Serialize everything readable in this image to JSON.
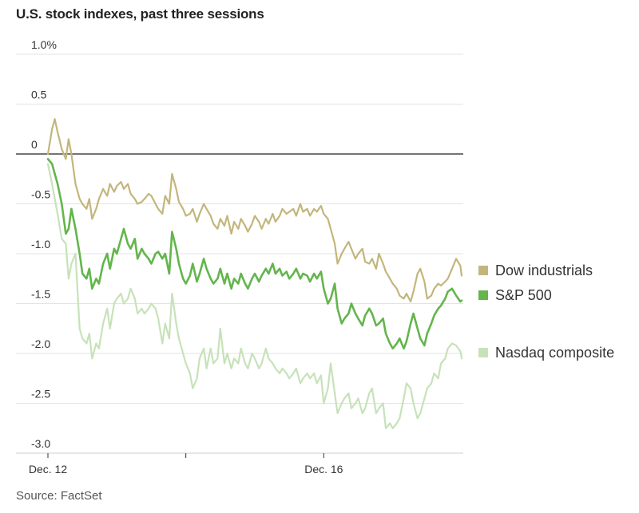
{
  "header": {
    "title": "U.S. stock indexes, past three sessions"
  },
  "footer": {
    "source": "Source: FactSet"
  },
  "chart_data": {
    "type": "line",
    "title": "U.S. stock indexes, past three sessions",
    "xlabel": "",
    "ylabel": "",
    "ylim": [
      -3.0,
      1.0
    ],
    "y_ticks": [
      1.0,
      0.5,
      0,
      -0.5,
      -1.0,
      -1.5,
      -2.0,
      -2.5,
      -3.0
    ],
    "y_tick_labels": [
      "1.0%",
      "0.5",
      "0",
      "-0.5",
      "-1.0",
      "-1.5",
      "-2.0",
      "-2.5",
      "-3.0"
    ],
    "x_tick_labels": [
      "Dec. 12",
      "",
      "Dec. 16"
    ],
    "x_range": [
      0,
      30
    ],
    "x_ticks": [
      0,
      10,
      20
    ],
    "grid": true,
    "legend_position": "right",
    "series": [
      {
        "name": "Dow industrials",
        "color": "#c3b67c",
        "x": [
          0,
          0.3,
          0.5,
          0.7,
          1.0,
          1.3,
          1.5,
          1.7,
          2.0,
          2.3,
          2.5,
          2.8,
          3.0,
          3.2,
          3.5,
          3.7,
          4.0,
          4.3,
          4.5,
          4.8,
          5.0,
          5.3,
          5.5,
          5.8,
          6.0,
          6.3,
          6.5,
          6.8,
          7.0,
          7.3,
          7.5,
          7.8,
          8.0,
          8.3,
          8.5,
          8.8,
          9.0,
          9.3,
          9.5,
          9.8,
          10.0,
          10.3,
          10.5,
          10.8,
          11.0,
          11.3,
          11.5,
          11.8,
          12.0,
          12.3,
          12.5,
          12.8,
          13.0,
          13.3,
          13.5,
          13.8,
          14.0,
          14.3,
          14.5,
          14.8,
          15.0,
          15.3,
          15.5,
          15.8,
          16.0,
          16.3,
          16.5,
          16.8,
          17.0,
          17.3,
          17.5,
          17.8,
          18.0,
          18.3,
          18.5,
          18.8,
          19.0,
          19.3,
          19.5,
          19.8,
          20.0,
          20.3,
          20.5,
          20.8,
          21.0,
          21.3,
          21.5,
          21.8,
          22.0,
          22.3,
          22.5,
          22.8,
          23.0,
          23.3,
          23.5,
          23.8,
          24.0,
          24.3,
          24.5,
          24.8,
          25.0,
          25.3,
          25.5,
          25.8,
          26.0,
          26.3,
          26.5,
          26.8,
          27.0,
          27.3,
          27.5,
          27.8,
          28.0,
          28.3,
          28.5,
          28.8,
          29.0,
          29.3,
          29.6,
          29.9,
          30.0
        ],
        "values": [
          0.0,
          0.25,
          0.35,
          0.22,
          0.05,
          -0.05,
          0.15,
          0.0,
          -0.3,
          -0.45,
          -0.5,
          -0.55,
          -0.45,
          -0.65,
          -0.55,
          -0.45,
          -0.35,
          -0.42,
          -0.3,
          -0.38,
          -0.32,
          -0.28,
          -0.35,
          -0.3,
          -0.4,
          -0.45,
          -0.5,
          -0.48,
          -0.45,
          -0.4,
          -0.42,
          -0.5,
          -0.55,
          -0.6,
          -0.42,
          -0.5,
          -0.2,
          -0.35,
          -0.48,
          -0.55,
          -0.62,
          -0.6,
          -0.55,
          -0.68,
          -0.6,
          -0.5,
          -0.55,
          -0.62,
          -0.7,
          -0.75,
          -0.65,
          -0.72,
          -0.62,
          -0.8,
          -0.68,
          -0.75,
          -0.65,
          -0.72,
          -0.78,
          -0.7,
          -0.62,
          -0.68,
          -0.75,
          -0.65,
          -0.7,
          -0.6,
          -0.68,
          -0.62,
          -0.55,
          -0.6,
          -0.58,
          -0.55,
          -0.62,
          -0.5,
          -0.58,
          -0.55,
          -0.62,
          -0.55,
          -0.58,
          -0.52,
          -0.6,
          -0.65,
          -0.75,
          -0.9,
          -1.1,
          -1.0,
          -0.95,
          -0.88,
          -0.95,
          -1.05,
          -1.0,
          -0.95,
          -1.08,
          -1.1,
          -1.05,
          -1.15,
          -1.0,
          -1.1,
          -1.18,
          -1.25,
          -1.3,
          -1.35,
          -1.42,
          -1.45,
          -1.4,
          -1.48,
          -1.38,
          -1.2,
          -1.15,
          -1.28,
          -1.45,
          -1.42,
          -1.35,
          -1.3,
          -1.32,
          -1.28,
          -1.25,
          -1.15,
          -1.05,
          -1.12,
          -1.22
        ],
        "line_width": 2.2
      },
      {
        "name": "S&P 500",
        "color": "#63b54c",
        "x": [
          0,
          0.3,
          0.5,
          0.7,
          1.0,
          1.3,
          1.5,
          1.7,
          2.0,
          2.3,
          2.5,
          2.8,
          3.0,
          3.2,
          3.5,
          3.7,
          4.0,
          4.3,
          4.5,
          4.8,
          5.0,
          5.3,
          5.5,
          5.8,
          6.0,
          6.3,
          6.5,
          6.8,
          7.0,
          7.3,
          7.5,
          7.8,
          8.0,
          8.3,
          8.5,
          8.8,
          9.0,
          9.3,
          9.5,
          9.8,
          10.0,
          10.3,
          10.5,
          10.8,
          11.0,
          11.3,
          11.5,
          11.8,
          12.0,
          12.3,
          12.5,
          12.8,
          13.0,
          13.3,
          13.5,
          13.8,
          14.0,
          14.3,
          14.5,
          14.8,
          15.0,
          15.3,
          15.5,
          15.8,
          16.0,
          16.3,
          16.5,
          16.8,
          17.0,
          17.3,
          17.5,
          17.8,
          18.0,
          18.3,
          18.5,
          18.8,
          19.0,
          19.3,
          19.5,
          19.8,
          20.0,
          20.3,
          20.5,
          20.8,
          21.0,
          21.3,
          21.5,
          21.8,
          22.0,
          22.3,
          22.5,
          22.8,
          23.0,
          23.3,
          23.5,
          23.8,
          24.0,
          24.3,
          24.5,
          24.8,
          25.0,
          25.3,
          25.5,
          25.8,
          26.0,
          26.3,
          26.5,
          26.8,
          27.0,
          27.3,
          27.5,
          27.8,
          28.0,
          28.3,
          28.5,
          28.8,
          29.0,
          29.3,
          29.6,
          29.9,
          30.0
        ],
        "values": [
          -0.05,
          -0.1,
          -0.2,
          -0.3,
          -0.5,
          -0.8,
          -0.75,
          -0.55,
          -0.75,
          -1.0,
          -1.2,
          -1.25,
          -1.15,
          -1.35,
          -1.25,
          -1.3,
          -1.1,
          -1.0,
          -1.15,
          -0.95,
          -1.0,
          -0.85,
          -0.75,
          -0.9,
          -0.95,
          -0.85,
          -1.05,
          -0.95,
          -1.0,
          -1.05,
          -1.1,
          -1.0,
          -0.98,
          -1.05,
          -1.0,
          -1.2,
          -0.78,
          -0.95,
          -1.1,
          -1.25,
          -1.3,
          -1.22,
          -1.1,
          -1.28,
          -1.2,
          -1.05,
          -1.15,
          -1.25,
          -1.3,
          -1.25,
          -1.15,
          -1.3,
          -1.2,
          -1.35,
          -1.25,
          -1.3,
          -1.2,
          -1.3,
          -1.35,
          -1.25,
          -1.2,
          -1.28,
          -1.22,
          -1.15,
          -1.2,
          -1.1,
          -1.2,
          -1.15,
          -1.22,
          -1.18,
          -1.25,
          -1.2,
          -1.15,
          -1.25,
          -1.2,
          -1.22,
          -1.28,
          -1.2,
          -1.25,
          -1.18,
          -1.35,
          -1.5,
          -1.45,
          -1.3,
          -1.55,
          -1.7,
          -1.65,
          -1.6,
          -1.5,
          -1.6,
          -1.65,
          -1.72,
          -1.62,
          -1.55,
          -1.6,
          -1.72,
          -1.7,
          -1.65,
          -1.8,
          -1.9,
          -1.95,
          -1.9,
          -1.85,
          -1.95,
          -1.88,
          -1.7,
          -1.6,
          -1.75,
          -1.85,
          -1.92,
          -1.8,
          -1.7,
          -1.62,
          -1.55,
          -1.52,
          -1.45,
          -1.38,
          -1.35,
          -1.42,
          -1.48,
          -1.47
        ],
        "line_width": 2.6
      },
      {
        "name": "Nasdaq composite",
        "color": "#c7e2b9",
        "x": [
          0,
          0.3,
          0.5,
          0.7,
          1.0,
          1.3,
          1.5,
          1.7,
          2.0,
          2.3,
          2.5,
          2.8,
          3.0,
          3.2,
          3.5,
          3.7,
          4.0,
          4.3,
          4.5,
          4.8,
          5.0,
          5.3,
          5.5,
          5.8,
          6.0,
          6.3,
          6.5,
          6.8,
          7.0,
          7.3,
          7.5,
          7.8,
          8.0,
          8.3,
          8.5,
          8.8,
          9.0,
          9.3,
          9.5,
          9.8,
          10.0,
          10.3,
          10.5,
          10.8,
          11.0,
          11.3,
          11.5,
          11.8,
          12.0,
          12.3,
          12.5,
          12.8,
          13.0,
          13.3,
          13.5,
          13.8,
          14.0,
          14.3,
          14.5,
          14.8,
          15.0,
          15.3,
          15.5,
          15.8,
          16.0,
          16.3,
          16.5,
          16.8,
          17.0,
          17.3,
          17.5,
          17.8,
          18.0,
          18.3,
          18.5,
          18.8,
          19.0,
          19.3,
          19.5,
          19.8,
          20.0,
          20.3,
          20.5,
          20.8,
          21.0,
          21.3,
          21.5,
          21.8,
          22.0,
          22.3,
          22.5,
          22.8,
          23.0,
          23.3,
          23.5,
          23.8,
          24.0,
          24.3,
          24.5,
          24.8,
          25.0,
          25.3,
          25.5,
          25.8,
          26.0,
          26.3,
          26.5,
          26.8,
          27.0,
          27.3,
          27.5,
          27.8,
          28.0,
          28.3,
          28.5,
          28.8,
          29.0,
          29.3,
          29.6,
          29.9,
          30.0
        ],
        "values": [
          -0.1,
          -0.3,
          -0.45,
          -0.6,
          -0.85,
          -0.9,
          -1.25,
          -1.1,
          -1.0,
          -1.75,
          -1.85,
          -1.9,
          -1.8,
          -2.05,
          -1.9,
          -1.95,
          -1.7,
          -1.55,
          -1.75,
          -1.5,
          -1.45,
          -1.4,
          -1.5,
          -1.45,
          -1.35,
          -1.45,
          -1.6,
          -1.55,
          -1.6,
          -1.55,
          -1.5,
          -1.55,
          -1.65,
          -1.9,
          -1.7,
          -1.85,
          -1.4,
          -1.7,
          -1.85,
          -2.0,
          -2.1,
          -2.2,
          -2.35,
          -2.25,
          -2.05,
          -1.95,
          -2.15,
          -1.95,
          -2.1,
          -2.05,
          -1.75,
          -2.1,
          -2.0,
          -2.15,
          -2.05,
          -2.1,
          -1.95,
          -2.1,
          -2.15,
          -2.0,
          -2.05,
          -2.15,
          -2.1,
          -1.95,
          -2.05,
          -2.1,
          -2.15,
          -2.2,
          -2.15,
          -2.2,
          -2.25,
          -2.2,
          -2.15,
          -2.3,
          -2.25,
          -2.2,
          -2.25,
          -2.2,
          -2.3,
          -2.22,
          -2.5,
          -2.35,
          -2.1,
          -2.4,
          -2.6,
          -2.5,
          -2.45,
          -2.4,
          -2.55,
          -2.5,
          -2.45,
          -2.6,
          -2.55,
          -2.4,
          -2.35,
          -2.6,
          -2.55,
          -2.5,
          -2.75,
          -2.7,
          -2.75,
          -2.7,
          -2.65,
          -2.45,
          -2.3,
          -2.35,
          -2.5,
          -2.65,
          -2.6,
          -2.45,
          -2.35,
          -2.3,
          -2.2,
          -2.25,
          -2.1,
          -2.05,
          -1.95,
          -1.9,
          -1.92,
          -1.98,
          -2.05
        ],
        "line_width": 2.2
      }
    ]
  }
}
